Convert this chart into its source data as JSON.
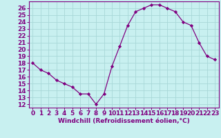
{
  "x": [
    0,
    1,
    2,
    3,
    4,
    5,
    6,
    7,
    8,
    9,
    10,
    11,
    12,
    13,
    14,
    15,
    16,
    17,
    18,
    19,
    20,
    21,
    22,
    23
  ],
  "y": [
    18,
    17,
    16.5,
    15.5,
    15,
    14.5,
    13.5,
    13.5,
    12,
    13.5,
    17.5,
    20.5,
    23.5,
    25.5,
    26,
    26.5,
    26.5,
    26,
    25.5,
    24,
    23.5,
    21,
    19,
    18.5
  ],
  "line_color": "#800080",
  "marker": "D",
  "marker_size": 2.2,
  "bg_color": "#c8f0f0",
  "grid_color": "#a8d8d8",
  "xlabel": "Windchill (Refroidissement éolien,°C)",
  "xlim": [
    -0.5,
    23.5
  ],
  "ylim": [
    11.5,
    27
  ],
  "yticks": [
    12,
    13,
    14,
    15,
    16,
    17,
    18,
    19,
    20,
    21,
    22,
    23,
    24,
    25,
    26
  ],
  "xticks": [
    0,
    1,
    2,
    3,
    4,
    5,
    6,
    7,
    8,
    9,
    10,
    11,
    12,
    13,
    14,
    15,
    16,
    17,
    18,
    19,
    20,
    21,
    22,
    23
  ],
  "tick_color": "#800080",
  "label_color": "#800080",
  "spine_color": "#800080",
  "tick_fontsize": 6.5,
  "xlabel_fontsize": 6.5
}
